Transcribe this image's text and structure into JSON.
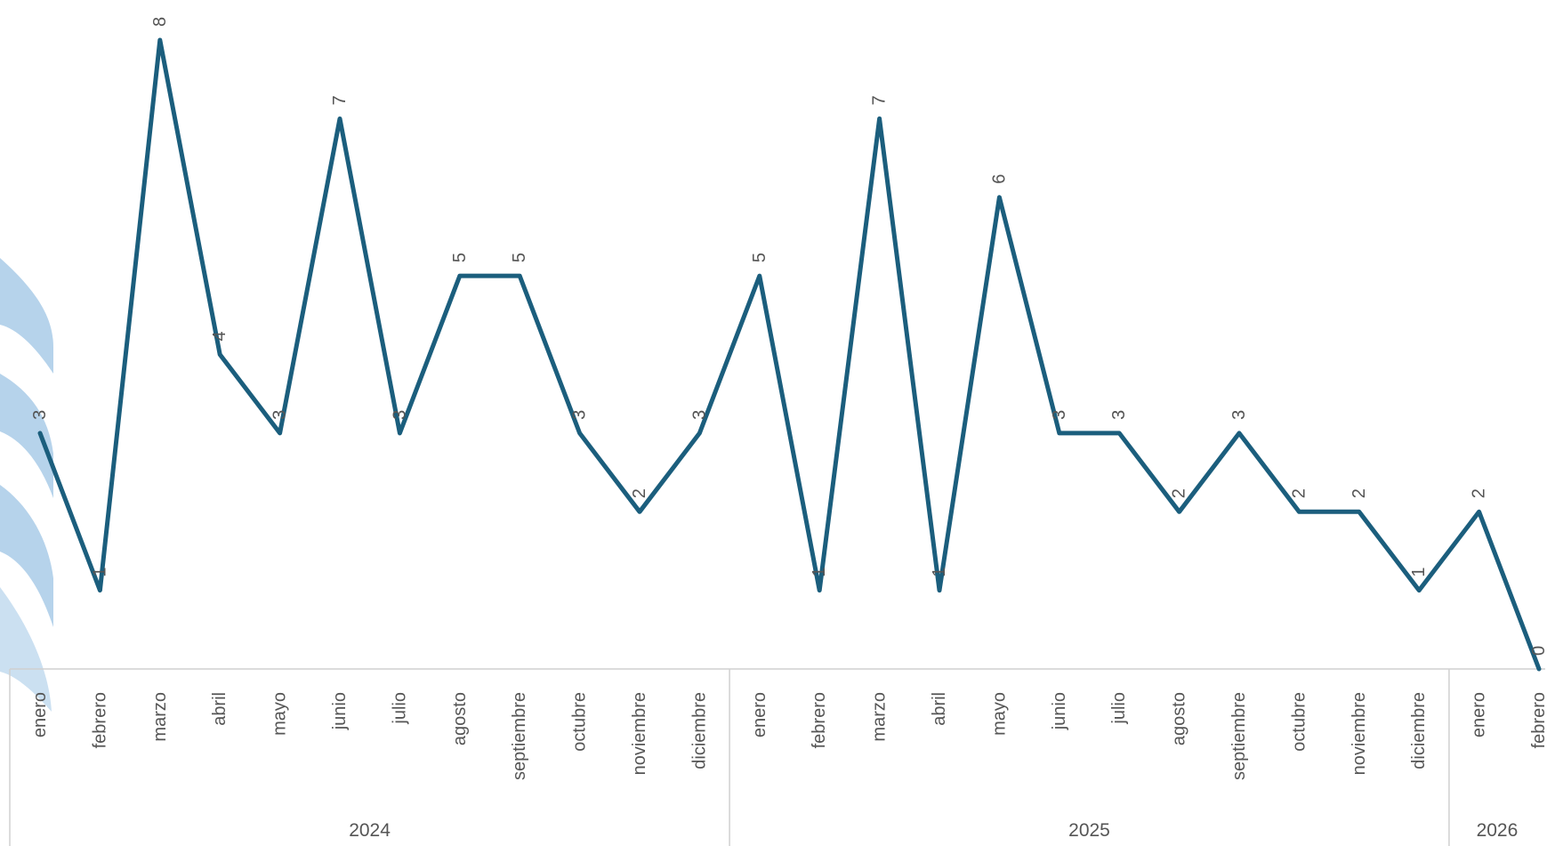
{
  "chart_data": {
    "type": "line",
    "title": "",
    "xlabel": "",
    "ylabel": "",
    "ylim": [
      0,
      8
    ],
    "grid": false,
    "legend": "none",
    "line_color": "#1b5e7d",
    "axis_color": "#d0d0d0",
    "text_color": "#555555",
    "watermark_color": "#a9cbe8",
    "categories": [
      "enero",
      "febrero",
      "marzo",
      "abril",
      "mayo",
      "junio",
      "julio",
      "agosto",
      "septiembre",
      "octubre",
      "noviembre",
      "diciembre",
      "enero",
      "febrero",
      "marzo",
      "abril",
      "mayo",
      "junio",
      "julio",
      "agosto",
      "septiembre",
      "octubre",
      "noviembre",
      "diciembre",
      "enero",
      "febrero"
    ],
    "groups": [
      {
        "label": "2024",
        "count": 12
      },
      {
        "label": "2025",
        "count": 12
      },
      {
        "label": "2026",
        "count": 2
      }
    ],
    "series": [
      {
        "values": [
          3,
          1,
          8,
          4,
          3,
          7,
          3,
          5,
          5,
          3,
          2,
          3,
          5,
          1,
          7,
          1,
          6,
          3,
          3,
          2,
          3,
          2,
          2,
          1,
          2,
          0
        ]
      }
    ]
  }
}
